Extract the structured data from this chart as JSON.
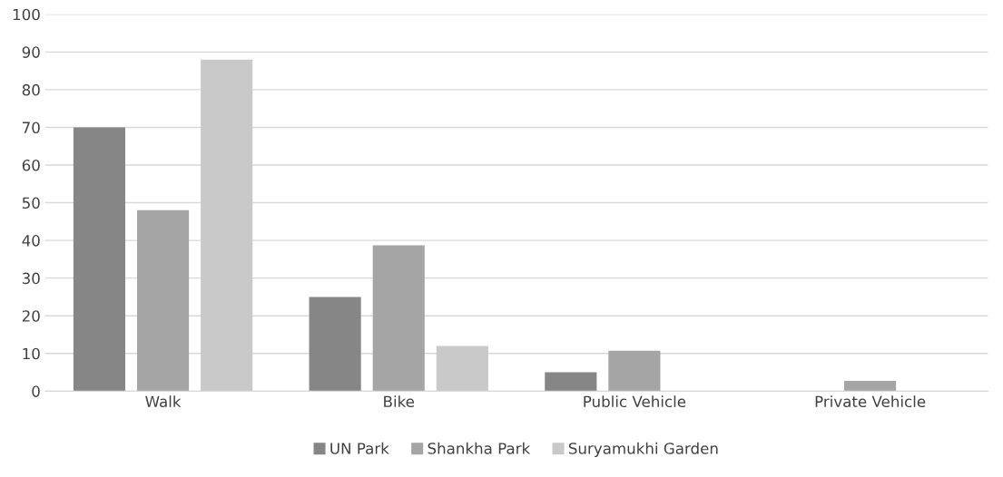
{
  "chart_data": {
    "type": "bar",
    "categories": [
      "Walk",
      "Bike",
      "Public Vehicle",
      "Private Vehicle"
    ],
    "series": [
      {
        "name": "UN Park",
        "color": "#868686",
        "values": [
          70,
          25,
          5,
          0
        ]
      },
      {
        "name": "Shankha Park",
        "color": "#a5a5a5",
        "values": [
          48,
          38.7,
          10.7,
          2.7
        ]
      },
      {
        "name": "Suryamukhi Garden",
        "color": "#c9c9c9",
        "values": [
          88,
          12,
          0,
          0
        ]
      }
    ],
    "ylim": [
      0,
      100
    ],
    "yticks": [
      0,
      10,
      20,
      30,
      40,
      50,
      60,
      70,
      80,
      90,
      100
    ],
    "grid": "y",
    "legend": "bottom"
  }
}
